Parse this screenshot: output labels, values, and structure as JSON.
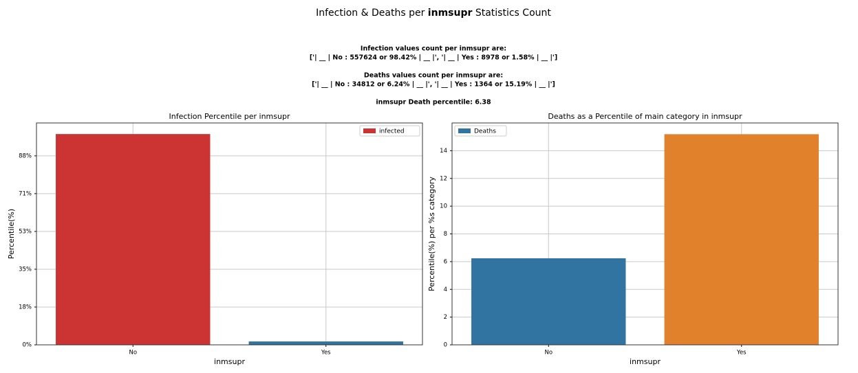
{
  "title_parts": [
    {
      "text": "Infection & Deaths per ",
      "bold": false
    },
    {
      "text": "inmsupr",
      "bold": true
    },
    {
      "text": " Statistics Count",
      "bold": false
    }
  ],
  "subtitle_blocks": [
    [
      "Infection values count per inmsupr are:",
      "['| __ | No : 557624 or 98.42% | __ |', '| __ | Yes : 8978 or 1.58% | __ |']"
    ],
    [
      "Deaths values count per inmsupr are:",
      "['| __ | No : 34812 or 6.24% | __ |', '| __ | Yes : 1364 or 15.19% | __ |']"
    ],
    [
      "inmsupr Death percentile: 6.38"
    ]
  ],
  "chart_data": [
    {
      "type": "bar",
      "title": "Infection Percentile per inmsupr",
      "xlabel": "inmsupr",
      "ylabel": "Percentile(%)",
      "categories": [
        "No",
        "Yes"
      ],
      "series": [
        {
          "name": "infected",
          "color": "#cc3333",
          "colors": [
            "#cc3333",
            "#3274a1"
          ],
          "values": [
            98.42,
            1.58
          ]
        }
      ],
      "ylim": [
        0,
        103.6
      ],
      "yticks": [
        {
          "value": 0,
          "label": "0%"
        },
        {
          "value": 17.65,
          "label": "18%"
        },
        {
          "value": 35.3,
          "label": "35%"
        },
        {
          "value": 52.95,
          "label": "53%"
        },
        {
          "value": 70.6,
          "label": "71%"
        },
        {
          "value": 88.25,
          "label": "88%"
        }
      ],
      "grid": true,
      "legend": "upper right"
    },
    {
      "type": "bar",
      "title": "Deaths as a Percentile of main category in inmsupr",
      "xlabel": "inmsupr",
      "ylabel": "Percentile(%) per %s category",
      "categories": [
        "No",
        "Yes"
      ],
      "series": [
        {
          "name": "Deaths",
          "color": "#3274a1",
          "colors": [
            "#3274a1",
            "#e1812c"
          ],
          "values": [
            6.24,
            15.19
          ]
        }
      ],
      "ylim": [
        0,
        16
      ],
      "yticks": [
        0,
        2,
        4,
        6,
        8,
        10,
        12,
        14
      ],
      "grid": true,
      "legend": "upper left"
    }
  ]
}
